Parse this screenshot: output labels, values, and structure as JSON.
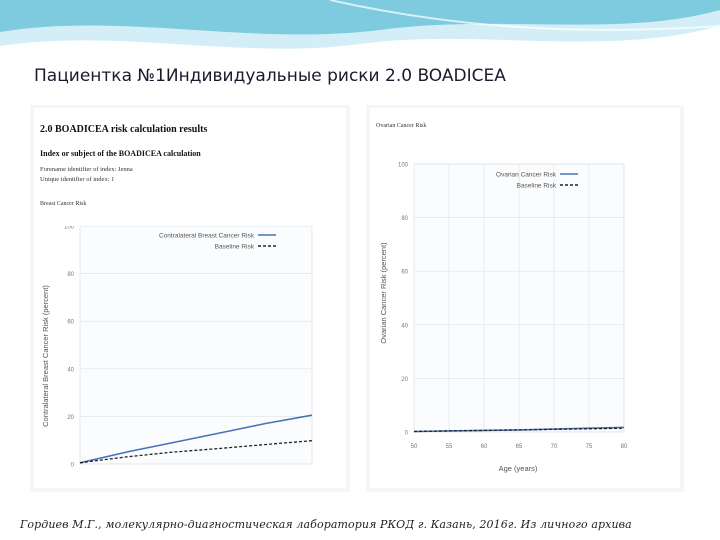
{
  "slide": {
    "title": "Пациентка №1Индивидуальные риски 2.0 BOADICEA",
    "footer": "Гордиев М.Г., молекулярно-диагностическая лаборатория РКОД г. Казань, 2016г. Из личного архива"
  },
  "report": {
    "heading": "2.0 BOADICEA risk calculation results",
    "subject_heading": "Index or subject of the BOADICEA calculation",
    "name_line": "Forename identifier of index: Jenna",
    "id_line": "Unique identifier of index: 1",
    "section_label": "Breast Cancer Risk",
    "ovarian_section_label": "Ovarian Cancer Risk"
  },
  "colors": {
    "wave_top": "#7ecbe0",
    "wave_light": "#d3eef6",
    "series_main": "#4a72b8",
    "series_baseline": "#222222",
    "panel_bg": "#f3f7fa"
  },
  "chart_data": [
    {
      "type": "line",
      "title": "",
      "ylabel": "Contralateral Breast Cancer Risk (percent)",
      "xlabel": "",
      "ylim": [
        0,
        100
      ],
      "xlim": [
        0,
        10
      ],
      "yticks": [
        "0",
        "20",
        "40",
        "60",
        "80",
        "100"
      ],
      "xticks": [],
      "grid": true,
      "legend_position": "top-right",
      "series": [
        {
          "name": "Contralateral Breast Cancer Risk",
          "style": "solid",
          "x": [
            0,
            2,
            4,
            6,
            8,
            10
          ],
          "values": [
            0.5,
            5,
            9,
            13,
            17,
            20.5
          ]
        },
        {
          "name": "Baseline Risk",
          "style": "dashed",
          "x": [
            0,
            2,
            4,
            6,
            8,
            10
          ],
          "values": [
            0.5,
            3,
            5,
            6.5,
            8.2,
            9.8
          ]
        }
      ]
    },
    {
      "type": "line",
      "title": "",
      "ylabel": "Ovarian Cancer Risk (percent)",
      "xlabel": "Age (years)",
      "ylim": [
        0,
        100
      ],
      "xlim": [
        50,
        80
      ],
      "yticks": [
        "0",
        "20",
        "40",
        "60",
        "80",
        "100"
      ],
      "xticks": [
        "50",
        "55",
        "60",
        "65",
        "70",
        "75",
        "80"
      ],
      "grid": true,
      "legend_position": "top-right",
      "series": [
        {
          "name": "Ovarian Cancer Risk",
          "style": "solid",
          "x": [
            50,
            55,
            60,
            65,
            70,
            75,
            80
          ],
          "values": [
            0.2,
            0.4,
            0.6,
            0.8,
            1.1,
            1.4,
            1.7
          ]
        },
        {
          "name": "Baseline Risk",
          "style": "dashed",
          "x": [
            50,
            55,
            60,
            65,
            70,
            75,
            80
          ],
          "values": [
            0.2,
            0.4,
            0.6,
            0.8,
            1.0,
            1.2,
            1.4
          ]
        }
      ]
    }
  ]
}
